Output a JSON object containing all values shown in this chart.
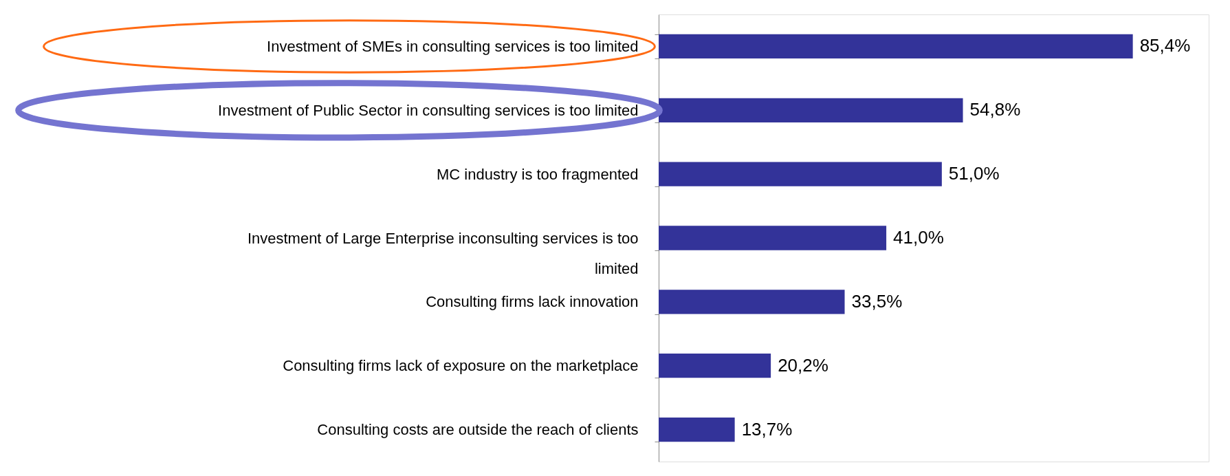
{
  "chart_data": {
    "type": "bar",
    "orientation": "horizontal",
    "categories": [
      "Investment of SMEs in consulting services is too limited",
      "Investment of Public Sector in consulting services is too limited",
      "MC industry is too fragmented",
      "Investment of Large Enterprise inconsulting services is too limited",
      "Consulting firms lack innovation",
      "Consulting firms lack of exposure on the marketplace",
      "Consulting costs are outside the reach of clients"
    ],
    "values": [
      85.4,
      54.8,
      51.0,
      41.0,
      33.5,
      20.2,
      13.7
    ],
    "value_labels": [
      "85,4%",
      "54,8%",
      "51,0%",
      "41,0%",
      "33,5%",
      "20,2%",
      "13,7%"
    ],
    "color": "#333399"
  }
}
